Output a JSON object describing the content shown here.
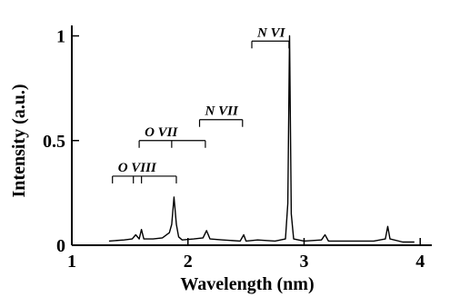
{
  "chart_data": {
    "type": "line",
    "xlabel": "Wavelength (nm)",
    "ylabel": "Intensity (a.u.)",
    "xlim": [
      1,
      4.1
    ],
    "ylim": [
      0,
      1.05
    ],
    "x_ticks": [
      1,
      2,
      3,
      4
    ],
    "x_tick_labels": [
      "1",
      "2",
      "3",
      "4"
    ],
    "y_ticks": [
      0,
      0.5,
      1
    ],
    "y_tick_labels": [
      "0",
      "0.5",
      "1"
    ],
    "series": [
      {
        "x": [
          1.32,
          1.45,
          1.52,
          1.55,
          1.58,
          1.6,
          1.62,
          1.7,
          1.78,
          1.84,
          1.86,
          1.88,
          1.9,
          1.92,
          1.95,
          2.05,
          2.13,
          2.16,
          2.19,
          2.3,
          2.45,
          2.48,
          2.5,
          2.6,
          2.75,
          2.84,
          2.86,
          2.875,
          2.89,
          2.91,
          3.0,
          3.15,
          3.18,
          3.21,
          3.4,
          3.6,
          3.7,
          3.72,
          3.74,
          3.85,
          3.95
        ],
        "y": [
          0.02,
          0.025,
          0.03,
          0.05,
          0.03,
          0.075,
          0.03,
          0.03,
          0.035,
          0.06,
          0.1,
          0.23,
          0.1,
          0.04,
          0.025,
          0.03,
          0.035,
          0.07,
          0.03,
          0.025,
          0.02,
          0.05,
          0.02,
          0.025,
          0.02,
          0.03,
          0.2,
          1.0,
          0.15,
          0.03,
          0.02,
          0.025,
          0.05,
          0.02,
          0.02,
          0.02,
          0.03,
          0.09,
          0.03,
          0.015,
          0.015
        ]
      }
    ],
    "annotations": [
      {
        "label": "N VI",
        "line_ticks": [
          2.55,
          2.87
        ]
      },
      {
        "label": "N VII",
        "line_ticks": [
          2.1,
          2.47
        ]
      },
      {
        "label": "O VII",
        "line_ticks": [
          1.58,
          1.86,
          2.15
        ]
      },
      {
        "label": "O VIII",
        "line_ticks": [
          1.35,
          1.53,
          1.6,
          1.9
        ]
      }
    ],
    "grid": false,
    "legend": "none"
  }
}
